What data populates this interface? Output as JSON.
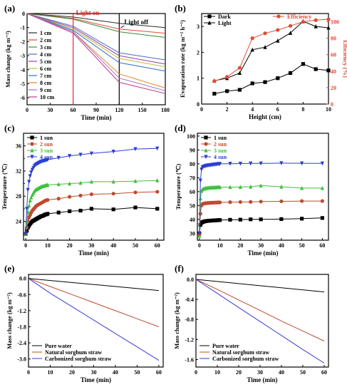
{
  "figure": {
    "panels": [
      "(a)",
      "(b)",
      "(c)",
      "(d)",
      "(e)",
      "(f)"
    ]
  },
  "chart_data": [
    {
      "id": "a",
      "type": "line",
      "panel_label": "(a)",
      "xlabel": "Time (min)",
      "ylabel": "Mass change (kg m⁻²)",
      "xlim": [
        0,
        180
      ],
      "ylim": [
        -6.5,
        0
      ],
      "xticks": [
        "0",
        "30",
        "60",
        "90",
        "120",
        "150",
        "180"
      ],
      "yticks": [
        "0",
        "-1",
        "-2",
        "-3",
        "-4",
        "-5",
        "-6"
      ],
      "annotations": [
        {
          "text": "Light on",
          "x": 60,
          "color": "#e8251f"
        },
        {
          "text": "Light off",
          "x": 120,
          "color": "#000000"
        }
      ],
      "series": [
        {
          "name": "1 cm",
          "color": "#2b2b2b",
          "x": [
            0,
            60,
            120,
            180
          ],
          "y": [
            0,
            -0.25,
            -0.7,
            -1.0
          ]
        },
        {
          "name": "2 cm",
          "color": "#e04b35",
          "x": [
            0,
            60,
            120,
            180
          ],
          "y": [
            0,
            -0.35,
            -1.1,
            -1.4
          ]
        },
        {
          "name": "3 cm",
          "color": "#3a8a3a",
          "x": [
            0,
            60,
            120,
            180
          ],
          "y": [
            0,
            -0.4,
            -1.3,
            -1.7
          ]
        },
        {
          "name": "4 cm",
          "color": "#4a6fc9",
          "x": [
            0,
            60,
            120,
            180
          ],
          "y": [
            0,
            -0.9,
            -2.8,
            -3.3
          ]
        },
        {
          "name": "5 cm",
          "color": "#9b3f9b",
          "x": [
            0,
            60,
            120,
            180
          ],
          "y": [
            0,
            -1.0,
            -3.0,
            -3.6
          ]
        },
        {
          "name": "6 cm",
          "color": "#c2bd35",
          "x": [
            0,
            60,
            120,
            180
          ],
          "y": [
            0,
            -1.1,
            -3.2,
            -3.8
          ]
        },
        {
          "name": "7 cm",
          "color": "#2c6fd1",
          "x": [
            0,
            60,
            120,
            180
          ],
          "y": [
            0,
            -1.2,
            -3.5,
            -4.1
          ]
        },
        {
          "name": "8 cm",
          "color": "#e8861f",
          "x": [
            0,
            60,
            120,
            180
          ],
          "y": [
            0,
            -1.3,
            -4.3,
            -5.3
          ]
        },
        {
          "name": "9 cm",
          "color": "#9c6fc9",
          "x": [
            0,
            60,
            120,
            180
          ],
          "y": [
            0,
            -1.3,
            -4.6,
            -5.5
          ]
        },
        {
          "name": "10 cm",
          "color": "#c0398c",
          "x": [
            0,
            60,
            120,
            180
          ],
          "y": [
            0,
            -1.4,
            -4.9,
            -5.7
          ]
        }
      ]
    },
    {
      "id": "b",
      "type": "line",
      "panel_label": "(b)",
      "xlabel": "Height (cm)",
      "ylabel": "Evaporation rate (kg m⁻² h⁻¹)",
      "y2label": "Efficiency (%)",
      "xlim": [
        0,
        10
      ],
      "ylim": [
        0,
        3.5
      ],
      "y2lim": [
        0,
        110
      ],
      "xticks": [
        "0",
        "2",
        "4",
        "6",
        "8",
        "10"
      ],
      "yticks": [
        "0",
        "1",
        "2",
        "3"
      ],
      "y2ticks": [
        "0",
        "20",
        "40",
        "60",
        "80",
        "100"
      ],
      "x": [
        1,
        2,
        3,
        4,
        5,
        6,
        7,
        8,
        9,
        10
      ],
      "series": [
        {
          "name": "Dark",
          "axis": "left",
          "color": "#000000",
          "marker": "square",
          "y": [
            0.4,
            0.5,
            0.55,
            0.8,
            0.85,
            1.0,
            1.2,
            1.55,
            1.35,
            1.3
          ]
        },
        {
          "name": "Light",
          "axis": "left",
          "color": "#000000",
          "marker": "triangle",
          "y": [
            0.9,
            1.0,
            1.2,
            2.1,
            2.2,
            2.45,
            2.75,
            3.2,
            3.0,
            2.95
          ]
        },
        {
          "name": "Efficiency",
          "axis": "right",
          "color": "#e04b35",
          "marker": "circle",
          "y": [
            28,
            33,
            44,
            80,
            86,
            90,
            95,
            100,
            102,
            103
          ]
        }
      ]
    },
    {
      "id": "c",
      "type": "line",
      "panel_label": "(c)",
      "xlabel": "Time (min)",
      "ylabel": "Temperature (℃)",
      "xlim": [
        -1,
        63
      ],
      "ylim": [
        21,
        38
      ],
      "xticks": [
        "0",
        "10",
        "20",
        "30",
        "40",
        "50",
        "60"
      ],
      "yticks": [
        "24",
        "28",
        "32",
        "36"
      ],
      "yticks_values": [
        24,
        28,
        32,
        36
      ],
      "yticks_extra": [
        "22",
        "26",
        "30",
        "34",
        "38"
      ],
      "x": [
        0,
        0.5,
        1,
        1.5,
        2,
        2.5,
        3,
        3.5,
        4,
        4.5,
        5,
        5.5,
        6,
        6.5,
        7,
        7.5,
        8,
        8.5,
        9,
        9.5,
        10,
        15,
        20,
        25,
        30,
        40,
        50,
        60
      ],
      "series": [
        {
          "name": "1 sun",
          "color": "#000000",
          "marker": "square",
          "y": [
            22,
            22.5,
            23,
            23.3,
            23.6,
            23.8,
            24,
            24.1,
            24.2,
            24.3,
            24.4,
            24.5,
            24.6,
            24.7,
            24.8,
            24.85,
            24.9,
            25,
            25.1,
            25.1,
            25.2,
            25.4,
            25.6,
            25.7,
            26,
            25.9,
            26.2,
            26.0
          ]
        },
        {
          "name": "2 sun",
          "color": "#c0492e",
          "marker": "circle",
          "y": [
            22,
            23,
            24,
            24.6,
            25,
            25.4,
            25.7,
            25.9,
            26.1,
            26.3,
            26.5,
            26.6,
            26.7,
            26.8,
            26.9,
            27,
            27.1,
            27.2,
            27.3,
            27.35,
            27.4,
            27.6,
            27.9,
            28.1,
            28.3,
            28.4,
            28.6,
            28.7
          ]
        },
        {
          "name": "3 sun",
          "color": "#3ec13e",
          "marker": "triangle",
          "y": [
            22,
            24,
            25.5,
            26.5,
            27.3,
            27.8,
            28.2,
            28.5,
            28.8,
            29,
            29.1,
            29.2,
            29.3,
            29.4,
            29.5,
            29.55,
            29.6,
            29.65,
            29.7,
            29.75,
            29.8,
            29.9,
            30,
            30.1,
            30.3,
            30.3,
            30.4,
            30.5
          ]
        },
        {
          "name": "4 sun",
          "color": "#2d3fd1",
          "marker": "triangle-down",
          "y": [
            22,
            26,
            29,
            30.3,
            31.2,
            31.8,
            32.2,
            32.5,
            32.8,
            33,
            33.1,
            33.2,
            33.3,
            33.4,
            33.5,
            33.55,
            33.6,
            33.65,
            33.7,
            33.75,
            33.8,
            34.1,
            34.4,
            34.6,
            34.8,
            35.1,
            35.5,
            35.6
          ]
        }
      ]
    },
    {
      "id": "d",
      "type": "line",
      "panel_label": "(d)",
      "xlabel": "Time (min)",
      "ylabel": "Temperature (℃)",
      "xlim": [
        -1,
        63
      ],
      "ylim": [
        25,
        102
      ],
      "xticks": [
        "0",
        "10",
        "20",
        "30",
        "40",
        "50",
        "60"
      ],
      "yticks": [
        "30",
        "40",
        "50",
        "60",
        "70",
        "80",
        "90",
        "100"
      ],
      "x": [
        0,
        0.5,
        1,
        1.5,
        2,
        2.5,
        3,
        3.5,
        4,
        4.5,
        5,
        5.5,
        6,
        6.5,
        7,
        7.5,
        8,
        8.5,
        9,
        9.5,
        10,
        15,
        20,
        25,
        30,
        40,
        50,
        60
      ],
      "series": [
        {
          "name": "1 sun",
          "color": "#000000",
          "marker": "square",
          "y": [
            30,
            36,
            37.5,
            38,
            38.3,
            38.5,
            38.7,
            38.8,
            38.9,
            39,
            39,
            39.1,
            39.1,
            39.2,
            39.2,
            39.3,
            39.3,
            39.4,
            39.4,
            39.5,
            39.5,
            39.7,
            39.8,
            40,
            40,
            40.2,
            40.5,
            41
          ]
        },
        {
          "name": "2 sun",
          "color": "#c0492e",
          "marker": "circle",
          "y": [
            29,
            44,
            50,
            51,
            51.3,
            51.5,
            51.6,
            51.7,
            51.8,
            51.8,
            51.9,
            51.9,
            52,
            52,
            52,
            52.1,
            52.1,
            52.1,
            52.2,
            52.2,
            52.2,
            52.4,
            52.5,
            52.6,
            52.8,
            53,
            53.2,
            53.2
          ]
        },
        {
          "name": "3 sun",
          "color": "#3ec13e",
          "marker": "triangle",
          "y": [
            28,
            55,
            60.5,
            61.5,
            62,
            62.2,
            62.4,
            62.5,
            62.6,
            62.7,
            62.8,
            62.8,
            62.9,
            62.9,
            63,
            63,
            63,
            63.1,
            63.1,
            63.1,
            63.2,
            63.2,
            63.3,
            63.5,
            64.3,
            63.5,
            62.5,
            62.5
          ]
        },
        {
          "name": "4 sun",
          "color": "#2d3fd1",
          "marker": "triangle-down",
          "y": [
            30,
            68,
            76,
            77.5,
            78,
            78.3,
            78.5,
            78.7,
            78.9,
            79,
            79.1,
            79.2,
            79.3,
            79.4,
            79.5,
            79.6,
            79.7,
            79.8,
            79.9,
            80,
            80,
            80.1,
            80.2,
            80.3,
            80.3,
            80.5,
            80.4,
            80.3
          ]
        }
      ]
    },
    {
      "id": "e",
      "type": "line",
      "panel_label": "(e)",
      "xlabel": "Time (min)",
      "ylabel": "Mass change (kg m⁻²)",
      "xlim": [
        0,
        62
      ],
      "ylim": [
        -3.3,
        0.15
      ],
      "xticks": [
        "0",
        "10",
        "20",
        "30",
        "40",
        "50",
        "60"
      ],
      "yticks": [
        "0.0",
        "-0.6",
        "-1.2",
        "-1.8",
        "-2.4",
        "-3.0"
      ],
      "series": [
        {
          "name": "Pure water",
          "color": "#000000",
          "x": [
            0,
            60
          ],
          "y": [
            0,
            -0.45
          ]
        },
        {
          "name": "Natural sorghum straw",
          "color": "#c0492e",
          "x": [
            0,
            10,
            20,
            30,
            40,
            50,
            60
          ],
          "y": [
            0,
            -0.3,
            -0.6,
            -0.9,
            -1.2,
            -1.5,
            -1.8
          ]
        },
        {
          "name": "Carbonized sorghum straw",
          "color": "#3a3ad6",
          "x": [
            0,
            10,
            20,
            30,
            40,
            50,
            60
          ],
          "y": [
            0,
            -0.55,
            -1.05,
            -1.55,
            -2.05,
            -2.55,
            -3.05
          ]
        }
      ]
    },
    {
      "id": "f",
      "type": "line",
      "panel_label": "(f)",
      "xlabel": "Time (min)",
      "ylabel": "Mass change (kg m⁻²)",
      "xlim": [
        0,
        62
      ],
      "ylim": [
        -1.75,
        0.1
      ],
      "xticks": [
        "0",
        "10",
        "20",
        "30",
        "40",
        "50",
        "60"
      ],
      "yticks": [
        "0.0",
        "-0.4",
        "-0.8",
        "-1.2",
        "-1.6"
      ],
      "series": [
        {
          "name": "Pure water",
          "color": "#000000",
          "x": [
            0,
            60
          ],
          "y": [
            0,
            -0.25
          ]
        },
        {
          "name": "Natural sorghum straw",
          "color": "#c0492e",
          "x": [
            0,
            10,
            20,
            30,
            40,
            50,
            60
          ],
          "y": [
            0,
            -0.2,
            -0.41,
            -0.62,
            -0.83,
            -1.03,
            -1.23
          ]
        },
        {
          "name": "Carbonized sorghum straw",
          "color": "#3a3ad6",
          "x": [
            0,
            10,
            20,
            30,
            40,
            50,
            60
          ],
          "y": [
            0,
            -0.28,
            -0.56,
            -0.84,
            -1.12,
            -1.4,
            -1.67
          ]
        }
      ]
    }
  ]
}
